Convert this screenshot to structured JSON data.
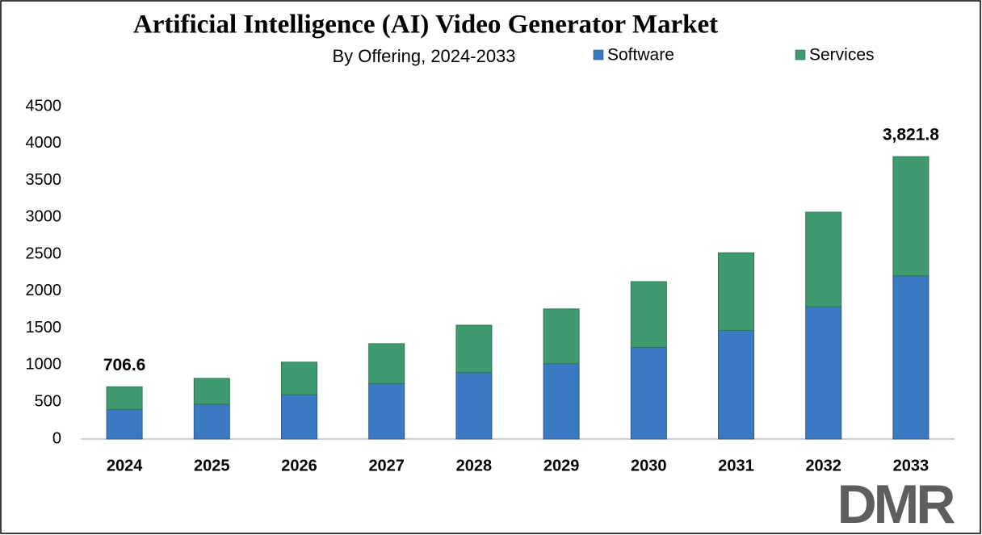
{
  "chart_data": {
    "type": "stacked_bar",
    "title": "Artificial Intelligence (AI) Video Generator Market",
    "subtitle": "By Offering, 2024-2033",
    "categories": [
      "2024",
      "2025",
      "2026",
      "2027",
      "2028",
      "2029",
      "2030",
      "2031",
      "2032",
      "2033"
    ],
    "series": [
      {
        "name": "Software",
        "color": "#3b79c2",
        "values": [
          400,
          470,
          600,
          750,
          900,
          1020,
          1240,
          1470,
          1790,
          2210
        ]
      },
      {
        "name": "Services",
        "color": "#3f9a6f",
        "values": [
          306.6,
          350,
          440,
          540,
          640,
          740,
          890,
          1050,
          1280,
          1611.8
        ]
      }
    ],
    "total_labels": [
      {
        "category": "2024",
        "value": 706.6,
        "label": "706.6"
      },
      {
        "category": "2033",
        "value": 3821.8,
        "label": "3,821.8"
      }
    ],
    "ylim": [
      0,
      4500
    ],
    "yticks": [
      0,
      500,
      1000,
      1500,
      2000,
      2500,
      3000,
      3500,
      4000,
      4500
    ],
    "grid": false,
    "legend": "top",
    "logo": "DMR"
  }
}
